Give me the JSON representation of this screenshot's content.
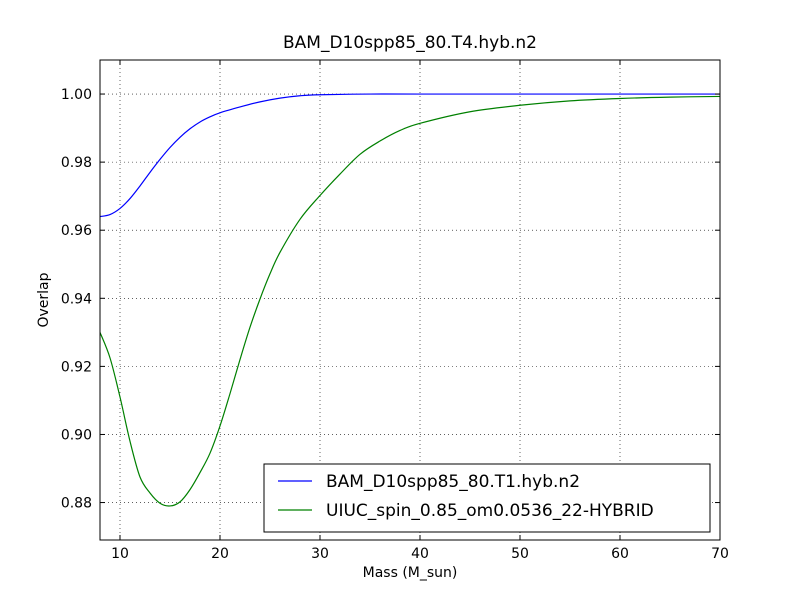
{
  "chart_data": {
    "type": "line",
    "title": "BAM_D10spp85_80.T4.hyb.n2",
    "xlabel": "Mass (M_sun)",
    "ylabel": "Overlap",
    "xlim": [
      8,
      70
    ],
    "ylim": [
      0.869,
      1.01
    ],
    "x_ticks": [
      10,
      20,
      30,
      40,
      50,
      60,
      70
    ],
    "y_ticks": [
      0.88,
      0.9,
      0.92,
      0.94,
      0.96,
      0.98,
      1.0
    ],
    "x_tick_labels": [
      "10",
      "20",
      "30",
      "40",
      "50",
      "60",
      "70"
    ],
    "y_tick_labels": [
      "0.88",
      "0.90",
      "0.92",
      "0.94",
      "0.96",
      "0.98",
      "1.00"
    ],
    "grid": true,
    "legend_position": "lower-right",
    "series": [
      {
        "name": "BAM_D10spp85_80.T1.hyb.n2",
        "color": "#0000ff",
        "x": [
          8,
          9,
          10,
          11,
          12,
          13,
          14,
          15,
          16,
          17,
          18,
          19,
          20,
          22,
          24,
          26,
          28,
          30,
          35,
          40,
          50,
          60,
          70
        ],
        "y": [
          0.964,
          0.9646,
          0.9664,
          0.9693,
          0.973,
          0.977,
          0.9808,
          0.9843,
          0.9873,
          0.9898,
          0.9918,
          0.9933,
          0.9945,
          0.9962,
          0.9977,
          0.9988,
          0.9995,
          0.9998,
          1.0,
          1.0,
          1.0,
          1.0,
          1.0
        ]
      },
      {
        "name": "UIUC_spin_0.85_om0.0536_22-HYBRID",
        "color": "#008000",
        "x": [
          8,
          9,
          10,
          11,
          12,
          13,
          14,
          15,
          16,
          17,
          18,
          19,
          20,
          21,
          22,
          23,
          24,
          25,
          26,
          28,
          30,
          32,
          34,
          36,
          38,
          40,
          45,
          50,
          55,
          60,
          65,
          70
        ],
        "y": [
          0.93,
          0.9225,
          0.911,
          0.898,
          0.8875,
          0.8828,
          0.8798,
          0.879,
          0.8802,
          0.8838,
          0.8888,
          0.8945,
          0.9025,
          0.912,
          0.922,
          0.9315,
          0.9398,
          0.9472,
          0.9535,
          0.9632,
          0.9702,
          0.9765,
          0.9823,
          0.9862,
          0.9893,
          0.9914,
          0.9948,
          0.9967,
          0.998,
          0.9987,
          0.9991,
          0.9993
        ]
      }
    ]
  }
}
